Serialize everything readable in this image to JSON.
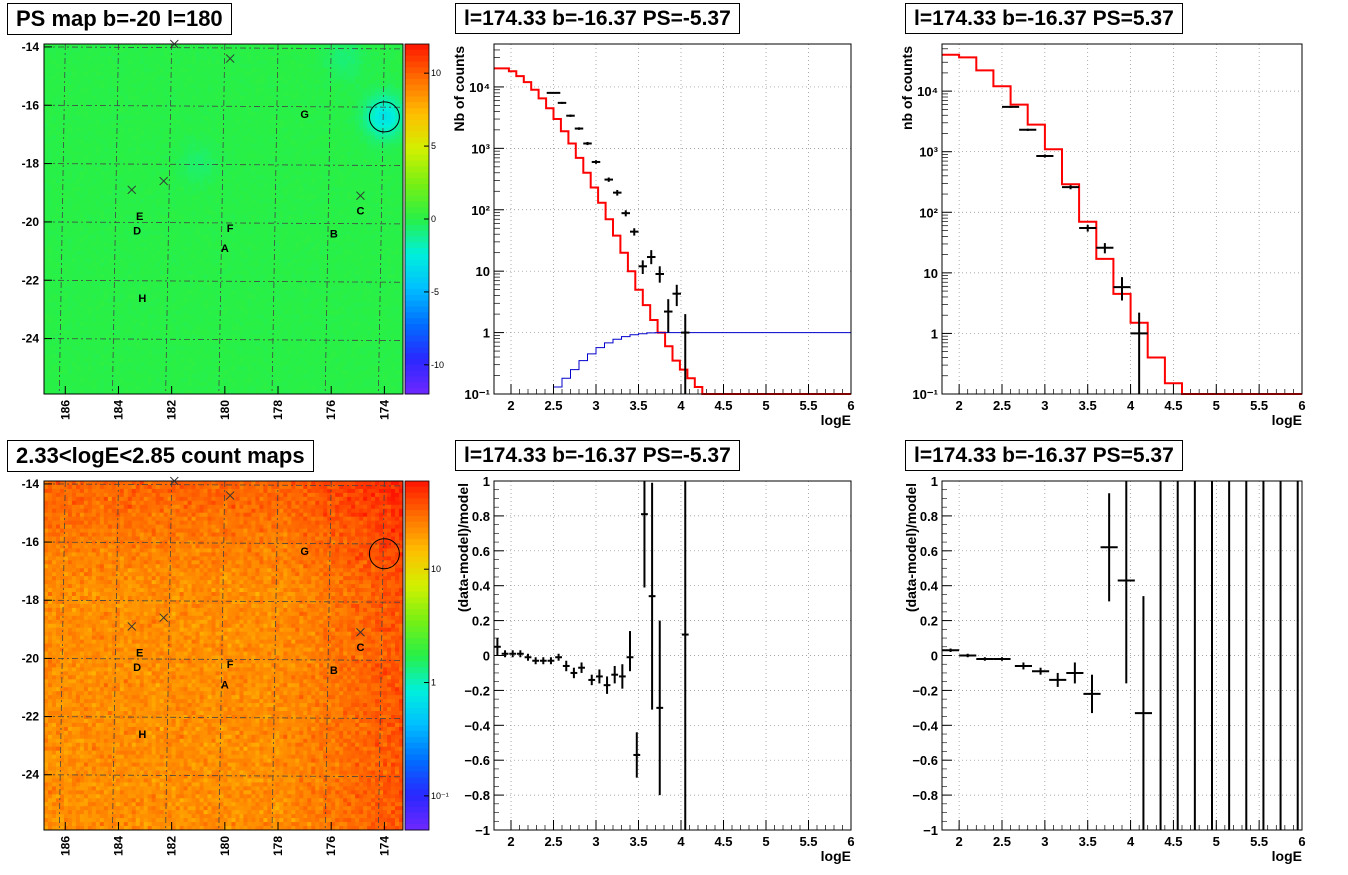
{
  "titles": {
    "map_ps": "PS map b=-20 l=180",
    "map_counts": "2.33<logE<2.85 count maps",
    "spec_neg": "l=174.33 b=-16.37 PS=-5.37",
    "spec_pos": "l=174.33 b=-16.37 PS=5.37",
    "res_neg": "l=174.33 b=-16.37 PS=-5.37",
    "res_pos": "l=174.33 b=-16.37 PS=5.37"
  },
  "colors": {
    "model": "#ff0000",
    "component": "#0000cc",
    "data": "#000000",
    "ps_background": "#3ee34a",
    "count_background": "#ff8a2a"
  },
  "chart_data": [
    {
      "id": "map_ps",
      "type": "heatmap",
      "title": "PS map b=-20 l=180",
      "x_ticks": [
        "186",
        "184",
        "182",
        "180",
        "178",
        "176",
        "174"
      ],
      "x_tick_values": [
        186,
        184,
        182,
        180,
        178,
        176,
        174
      ],
      "xlim": [
        186.8,
        173.3
      ],
      "y_ticks": [
        "-14",
        "-16",
        "-18",
        "-20",
        "-22",
        "-24"
      ],
      "y_tick_values": [
        -14,
        -16,
        -18,
        -20,
        -22,
        -24
      ],
      "ylim": [
        -25.9,
        -13.9
      ],
      "z_ticks": [
        "10",
        "5",
        "0",
        "-5",
        "-10"
      ],
      "z_tick_values": [
        10,
        5,
        0,
        -5,
        -10
      ],
      "zlim": [
        -12,
        12
      ],
      "zscale": "linear",
      "labels": [
        {
          "text": "G",
          "l": 177.0,
          "b": -16.3
        },
        {
          "text": "C",
          "l": 174.9,
          "b": -19.6
        },
        {
          "text": "E",
          "l": 183.2,
          "b": -19.8
        },
        {
          "text": "D",
          "l": 183.3,
          "b": -20.3
        },
        {
          "text": "F",
          "l": 179.8,
          "b": -20.2
        },
        {
          "text": "B",
          "l": 175.9,
          "b": -20.4
        },
        {
          "text": "A",
          "l": 180.0,
          "b": -20.9
        },
        {
          "text": "H",
          "l": 183.1,
          "b": -22.6
        }
      ],
      "crosses": [
        {
          "l": 181.9,
          "b": -13.9
        },
        {
          "l": 179.8,
          "b": -14.4
        },
        {
          "l": 183.5,
          "b": -18.9
        },
        {
          "l": 182.3,
          "b": -18.6
        },
        {
          "l": 174.9,
          "b": -19.1
        }
      ],
      "circle": {
        "l": 174.0,
        "b": -16.4
      },
      "hotspots": [
        {
          "l": 174.0,
          "b": -16.4,
          "z": -3
        },
        {
          "l": 175.5,
          "b": -14.4,
          "z": -0.8
        },
        {
          "l": 181.0,
          "b": -18.0,
          "z": -0.6
        }
      ]
    },
    {
      "id": "map_counts",
      "type": "heatmap",
      "title": "2.33<logE<2.85 count maps",
      "x_ticks": [
        "186",
        "184",
        "182",
        "180",
        "178",
        "176",
        "174"
      ],
      "x_tick_values": [
        186,
        184,
        182,
        180,
        178,
        176,
        174
      ],
      "xlim": [
        186.8,
        173.3
      ],
      "y_ticks": [
        "-14",
        "-16",
        "-18",
        "-20",
        "-22",
        "-24"
      ],
      "y_tick_values": [
        -14,
        -16,
        -18,
        -20,
        -22,
        -24
      ],
      "ylim": [
        -25.9,
        -13.9
      ],
      "z_ticks": [
        "10",
        "1",
        "10⁻¹"
      ],
      "z_tick_values": [
        10,
        1,
        0.1
      ],
      "zlim": [
        0.05,
        60
      ],
      "zscale": "log",
      "labels": [
        {
          "text": "G",
          "l": 177.0,
          "b": -16.3
        },
        {
          "text": "C",
          "l": 174.9,
          "b": -19.6
        },
        {
          "text": "E",
          "l": 183.2,
          "b": -19.8
        },
        {
          "text": "D",
          "l": 183.3,
          "b": -20.3
        },
        {
          "text": "F",
          "l": 179.8,
          "b": -20.2
        },
        {
          "text": "B",
          "l": 175.9,
          "b": -20.4
        },
        {
          "text": "A",
          "l": 180.0,
          "b": -20.9
        },
        {
          "text": "H",
          "l": 183.1,
          "b": -22.6
        }
      ],
      "crosses": [
        {
          "l": 181.9,
          "b": -13.9
        },
        {
          "l": 179.8,
          "b": -14.4
        },
        {
          "l": 183.5,
          "b": -18.9
        },
        {
          "l": 182.3,
          "b": -18.6
        },
        {
          "l": 174.9,
          "b": -19.1
        }
      ],
      "circle": {
        "l": 174.0,
        "b": -16.4
      }
    },
    {
      "id": "spec_neg",
      "type": "line",
      "title": "l=174.33 b=-16.37 PS=-5.37",
      "xlabel": "logE",
      "ylabel": "Nb of counts",
      "xlim": [
        1.8,
        6
      ],
      "ylim": [
        0.1,
        50000
      ],
      "yscale": "log",
      "grid": true,
      "x_ticks": [
        "2",
        "2.5",
        "3",
        "3.5",
        "4",
        "4.5",
        "5",
        "5.5",
        "6"
      ],
      "x_tick_values": [
        2,
        2.5,
        3,
        3.5,
        4,
        4.5,
        5,
        5.5,
        6
      ],
      "y_ticks": [
        "10⁻¹",
        "1",
        "10",
        "10²",
        "10³",
        "10⁴"
      ],
      "y_tick_values": [
        0.1,
        1,
        10,
        100,
        1000,
        10000
      ],
      "bin_width": 0.0875,
      "model_x": [
        1.8,
        1.8875,
        1.975,
        2.0625,
        2.15,
        2.2375,
        2.325,
        2.4125,
        2.5,
        2.5875,
        2.675,
        2.7625,
        2.85,
        2.9375,
        3.025,
        3.1125,
        3.2,
        3.2875,
        3.375,
        3.4625,
        3.55,
        3.6375,
        3.725,
        3.8125,
        3.9,
        3.9875,
        4.075,
        4.1625,
        4.25,
        4.3375,
        4.425,
        4.5125,
        6.0
      ],
      "model_y": [
        20000,
        20000,
        18000,
        15000,
        12000,
        9000,
        6500,
        4500,
        3000,
        1900,
        1200,
        700,
        400,
        230,
        130,
        70,
        38,
        20,
        10,
        5,
        2.8,
        1.6,
        1.0,
        0.6,
        0.35,
        0.25,
        0.18,
        0.13,
        0.1,
        0.1,
        0.1,
        0.1,
        0.1
      ],
      "component_x": [
        2.4,
        2.5,
        2.6,
        2.7,
        2.8,
        2.9,
        3.0,
        3.1,
        3.2,
        3.3,
        3.4,
        3.5,
        3.6,
        3.7,
        6.0
      ],
      "component_y": [
        0.1,
        0.13,
        0.18,
        0.25,
        0.35,
        0.45,
        0.57,
        0.68,
        0.78,
        0.86,
        0.92,
        0.96,
        0.99,
        1.0,
        1.0
      ],
      "points": [
        {
          "x": 2.5,
          "y": 8000,
          "xerr": 0.08,
          "ylo": 7800,
          "yhi": 8200
        },
        {
          "x": 2.6,
          "y": 5500,
          "xerr": 0.05,
          "ylo": 5300,
          "yhi": 5700
        },
        {
          "x": 2.7,
          "y": 3400,
          "xerr": 0.05,
          "ylo": 3250,
          "yhi": 3550
        },
        {
          "x": 2.8,
          "y": 2100,
          "xerr": 0.05,
          "ylo": 2000,
          "yhi": 2200
        },
        {
          "x": 2.9,
          "y": 1200,
          "xerr": 0.05,
          "ylo": 1130,
          "yhi": 1270
        },
        {
          "x": 3.0,
          "y": 600,
          "xerr": 0.05,
          "ylo": 560,
          "yhi": 640
        },
        {
          "x": 3.15,
          "y": 310,
          "xerr": 0.05,
          "ylo": 285,
          "yhi": 335
        },
        {
          "x": 3.25,
          "y": 190,
          "xerr": 0.05,
          "ylo": 170,
          "yhi": 210
        },
        {
          "x": 3.35,
          "y": 88,
          "xerr": 0.05,
          "ylo": 78,
          "yhi": 98
        },
        {
          "x": 3.45,
          "y": 44,
          "xerr": 0.05,
          "ylo": 38,
          "yhi": 50
        },
        {
          "x": 3.55,
          "y": 12,
          "xerr": 0.05,
          "ylo": 9,
          "yhi": 15
        },
        {
          "x": 3.65,
          "y": 17,
          "xerr": 0.05,
          "ylo": 13,
          "yhi": 22
        },
        {
          "x": 3.75,
          "y": 9,
          "xerr": 0.05,
          "ylo": 6.5,
          "yhi": 12
        },
        {
          "x": 3.85,
          "y": 2.2,
          "xerr": 0.05,
          "ylo": 1.0,
          "yhi": 3.5
        },
        {
          "x": 3.95,
          "y": 4.3,
          "xerr": 0.05,
          "ylo": 2.7,
          "yhi": 6.0
        },
        {
          "x": 4.05,
          "y": 1.0,
          "xerr": 0.05,
          "ylo": 0.1,
          "yhi": 2.0
        }
      ]
    },
    {
      "id": "spec_pos",
      "type": "line",
      "title": "l=174.33 b=-16.37 PS=5.37",
      "xlabel": "logE",
      "ylabel": "nb of counts",
      "xlim": [
        1.8,
        6
      ],
      "ylim": [
        0.1,
        60000
      ],
      "yscale": "log",
      "grid": true,
      "x_ticks": [
        "2",
        "2.5",
        "3",
        "3.5",
        "4",
        "4.5",
        "5",
        "5.5",
        "6"
      ],
      "x_tick_values": [
        2,
        2.5,
        3,
        3.5,
        4,
        4.5,
        5,
        5.5,
        6
      ],
      "y_ticks": [
        "10⁻¹",
        "1",
        "10",
        "10²",
        "10³",
        "10⁴"
      ],
      "y_tick_values": [
        0.1,
        1,
        10,
        100,
        1000,
        10000
      ],
      "bin_width": 0.2,
      "model_x": [
        1.8,
        2.0,
        2.2,
        2.4,
        2.6,
        2.8,
        3.0,
        3.2,
        3.4,
        3.6,
        3.8,
        4.0,
        4.2,
        4.4,
        4.6,
        6.0
      ],
      "model_y": [
        40000,
        36000,
        22000,
        12000,
        6000,
        2800,
        1100,
        290,
        70,
        17,
        4.5,
        1.5,
        0.4,
        0.15,
        0.1,
        0.1
      ],
      "points": [
        {
          "x": 2.6,
          "y": 5500,
          "xerr": 0.1,
          "ylo": 5300,
          "yhi": 5700
        },
        {
          "x": 2.8,
          "y": 2300,
          "xerr": 0.1,
          "ylo": 2200,
          "yhi": 2400
        },
        {
          "x": 3.0,
          "y": 850,
          "xerr": 0.1,
          "ylo": 800,
          "yhi": 900
        },
        {
          "x": 3.3,
          "y": 260,
          "xerr": 0.1,
          "ylo": 240,
          "yhi": 280
        },
        {
          "x": 3.5,
          "y": 55,
          "xerr": 0.1,
          "ylo": 48,
          "yhi": 62
        },
        {
          "x": 3.7,
          "y": 26,
          "xerr": 0.1,
          "ylo": 21,
          "yhi": 31
        },
        {
          "x": 3.9,
          "y": 5.8,
          "xerr": 0.1,
          "ylo": 3.5,
          "yhi": 8.5
        },
        {
          "x": 4.1,
          "y": 1.0,
          "xerr": 0.1,
          "ylo": 0.1,
          "yhi": 2.2
        }
      ]
    },
    {
      "id": "res_neg",
      "type": "scatter",
      "title": "l=174.33 b=-16.37 PS=-5.37",
      "xlabel": "logE",
      "ylabel": "(data-model)/model",
      "xlim": [
        1.8,
        6
      ],
      "ylim": [
        -1,
        1
      ],
      "grid": true,
      "x_ticks": [
        "2",
        "2.5",
        "3",
        "3.5",
        "4",
        "4.5",
        "5",
        "5.5",
        "6"
      ],
      "x_tick_values": [
        2,
        2.5,
        3,
        3.5,
        4,
        4.5,
        5,
        5.5,
        6
      ],
      "y_ticks": [
        "−1",
        "−0.8",
        "−0.6",
        "−0.4",
        "−0.2",
        "0",
        "0.2",
        "0.4",
        "0.6",
        "0.8",
        "1"
      ],
      "y_tick_values": [
        -1,
        -0.8,
        -0.6,
        -0.4,
        -0.2,
        0,
        0.2,
        0.4,
        0.6,
        0.8,
        1
      ],
      "points": [
        {
          "x": 1.84,
          "y": 0.05,
          "xerr": 0.04,
          "ylo": 0.0,
          "yhi": 0.1
        },
        {
          "x": 1.93,
          "y": 0.01,
          "xerr": 0.04,
          "ylo": -0.01,
          "yhi": 0.03
        },
        {
          "x": 2.02,
          "y": 0.01,
          "xerr": 0.04,
          "ylo": -0.01,
          "yhi": 0.03
        },
        {
          "x": 2.11,
          "y": 0.01,
          "xerr": 0.04,
          "ylo": -0.01,
          "yhi": 0.03
        },
        {
          "x": 2.2,
          "y": -0.01,
          "xerr": 0.04,
          "ylo": -0.03,
          "yhi": 0.01
        },
        {
          "x": 2.29,
          "y": -0.03,
          "xerr": 0.04,
          "ylo": -0.05,
          "yhi": -0.01
        },
        {
          "x": 2.38,
          "y": -0.03,
          "xerr": 0.04,
          "ylo": -0.05,
          "yhi": -0.01
        },
        {
          "x": 2.47,
          "y": -0.03,
          "xerr": 0.04,
          "ylo": -0.05,
          "yhi": -0.01
        },
        {
          "x": 2.56,
          "y": -0.01,
          "xerr": 0.04,
          "ylo": -0.03,
          "yhi": 0.01
        },
        {
          "x": 2.65,
          "y": -0.06,
          "xerr": 0.04,
          "ylo": -0.09,
          "yhi": -0.03
        },
        {
          "x": 2.74,
          "y": -0.1,
          "xerr": 0.04,
          "ylo": -0.13,
          "yhi": -0.07
        },
        {
          "x": 2.83,
          "y": -0.07,
          "xerr": 0.04,
          "ylo": -0.1,
          "yhi": -0.04
        },
        {
          "x": 2.95,
          "y": -0.14,
          "xerr": 0.04,
          "ylo": -0.17,
          "yhi": -0.11
        },
        {
          "x": 3.04,
          "y": -0.12,
          "xerr": 0.04,
          "ylo": -0.16,
          "yhi": -0.08
        },
        {
          "x": 3.13,
          "y": -0.17,
          "xerr": 0.04,
          "ylo": -0.22,
          "yhi": -0.12
        },
        {
          "x": 3.22,
          "y": -0.11,
          "xerr": 0.04,
          "ylo": -0.16,
          "yhi": -0.06
        },
        {
          "x": 3.31,
          "y": -0.12,
          "xerr": 0.04,
          "ylo": -0.19,
          "yhi": -0.05
        },
        {
          "x": 3.4,
          "y": -0.01,
          "xerr": 0.04,
          "ylo": -0.09,
          "yhi": 0.14
        },
        {
          "x": 3.48,
          "y": -0.57,
          "xerr": 0.04,
          "ylo": -0.7,
          "yhi": -0.44
        },
        {
          "x": 3.57,
          "y": 0.81,
          "xerr": 0.04,
          "ylo": 0.39,
          "yhi": 1.0
        },
        {
          "x": 3.66,
          "y": 0.34,
          "xerr": 0.04,
          "ylo": -0.31,
          "yhi": 0.99
        },
        {
          "x": 3.75,
          "y": -0.3,
          "xerr": 0.04,
          "ylo": -0.8,
          "yhi": 0.2
        },
        {
          "x": 4.05,
          "y": 0.12,
          "xerr": 0.04,
          "ylo": -1.0,
          "yhi": 1.0
        }
      ]
    },
    {
      "id": "res_pos",
      "type": "scatter",
      "title": "l=174.33 b=-16.37 PS=5.37",
      "xlabel": "logE",
      "ylabel": "(data-model)/model",
      "xlim": [
        1.8,
        6
      ],
      "ylim": [
        -1,
        1
      ],
      "grid": true,
      "x_ticks": [
        "2",
        "2.5",
        "3",
        "3.5",
        "4",
        "4.5",
        "5",
        "5.5",
        "6"
      ],
      "x_tick_values": [
        2,
        2.5,
        3,
        3.5,
        4,
        4.5,
        5,
        5.5,
        6
      ],
      "y_ticks": [
        "−1",
        "−0.8",
        "−0.6",
        "−0.4",
        "−0.2",
        "0",
        "0.2",
        "0.4",
        "0.6",
        "0.8",
        "1"
      ],
      "y_tick_values": [
        -1,
        -0.8,
        -0.6,
        -0.4,
        -0.2,
        0,
        0.2,
        0.4,
        0.6,
        0.8,
        1
      ],
      "points": [
        {
          "x": 1.9,
          "y": 0.03,
          "xerr": 0.1,
          "ylo": 0.02,
          "yhi": 0.04
        },
        {
          "x": 2.1,
          "y": 0.0,
          "xerr": 0.1,
          "ylo": -0.01,
          "yhi": 0.01
        },
        {
          "x": 2.3,
          "y": -0.02,
          "xerr": 0.1,
          "ylo": -0.03,
          "yhi": -0.01
        },
        {
          "x": 2.5,
          "y": -0.02,
          "xerr": 0.1,
          "ylo": -0.03,
          "yhi": -0.01
        },
        {
          "x": 2.75,
          "y": -0.06,
          "xerr": 0.1,
          "ylo": -0.08,
          "yhi": -0.04
        },
        {
          "x": 2.95,
          "y": -0.09,
          "xerr": 0.1,
          "ylo": -0.11,
          "yhi": -0.07
        },
        {
          "x": 3.15,
          "y": -0.14,
          "xerr": 0.1,
          "ylo": -0.18,
          "yhi": -0.1
        },
        {
          "x": 3.35,
          "y": -0.1,
          "xerr": 0.1,
          "ylo": -0.16,
          "yhi": -0.04
        },
        {
          "x": 3.55,
          "y": -0.22,
          "xerr": 0.1,
          "ylo": -0.33,
          "yhi": -0.11
        },
        {
          "x": 3.75,
          "y": 0.62,
          "xerr": 0.1,
          "ylo": 0.31,
          "yhi": 0.93
        },
        {
          "x": 3.95,
          "y": 0.43,
          "xerr": 0.1,
          "ylo": -0.16,
          "yhi": 1.0
        },
        {
          "x": 4.15,
          "y": -0.33,
          "xerr": 0.1,
          "ylo": -1.0,
          "yhi": 0.34
        },
        {
          "x": 4.35,
          "y": 0.0,
          "xerr": 0.0,
          "ylo": -1.0,
          "yhi": 1.0
        },
        {
          "x": 4.55,
          "y": 0.0,
          "xerr": 0.0,
          "ylo": -1.0,
          "yhi": 1.0
        },
        {
          "x": 4.75,
          "y": 0.0,
          "xerr": 0.0,
          "ylo": -1.0,
          "yhi": 1.0
        },
        {
          "x": 4.95,
          "y": 0.0,
          "xerr": 0.0,
          "ylo": -1.0,
          "yhi": 1.0
        },
        {
          "x": 5.15,
          "y": 0.0,
          "xerr": 0.0,
          "ylo": -1.0,
          "yhi": 1.0
        },
        {
          "x": 5.35,
          "y": 0.0,
          "xerr": 0.0,
          "ylo": -1.0,
          "yhi": 1.0
        },
        {
          "x": 5.55,
          "y": 0.0,
          "xerr": 0.0,
          "ylo": -1.0,
          "yhi": 1.0
        },
        {
          "x": 5.75,
          "y": 0.0,
          "xerr": 0.0,
          "ylo": -1.0,
          "yhi": 1.0
        },
        {
          "x": 5.95,
          "y": 0.0,
          "xerr": 0.0,
          "ylo": -1.0,
          "yhi": 1.0
        }
      ]
    }
  ]
}
